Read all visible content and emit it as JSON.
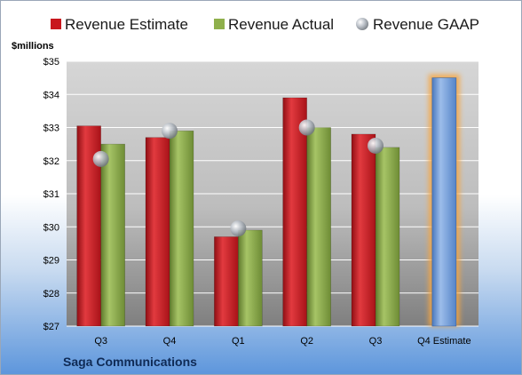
{
  "chart_data": {
    "type": "bar",
    "unit_label": "$millions",
    "company": "Saga Communications",
    "categories": [
      "Q3",
      "Q4",
      "Q1",
      "Q2",
      "Q3",
      "Q4 Estimate"
    ],
    "ylim": [
      27,
      35
    ],
    "yticks": [
      "$27",
      "$28",
      "$29",
      "$30",
      "$31",
      "$32",
      "$33",
      "$34",
      "$35"
    ],
    "grid": true,
    "legend_position": "top",
    "series": [
      {
        "name": "Revenue Estimate",
        "color": "#c8161d",
        "values": [
          33.05,
          32.7,
          29.7,
          33.9,
          32.8,
          null
        ]
      },
      {
        "name": "Revenue Actual",
        "color": "#8fb04c",
        "values": [
          32.5,
          32.9,
          29.9,
          33.0,
          32.4,
          null
        ]
      },
      {
        "name": "Revenue GAAP",
        "color": "#b4b9c0",
        "marker": "circle",
        "values": [
          32.05,
          32.9,
          29.95,
          33.0,
          32.45,
          null
        ]
      }
    ],
    "future_estimate": {
      "category": "Q4 Estimate",
      "value": 34.5,
      "color": "#6f9ad6",
      "glow": "#f7a640"
    }
  }
}
